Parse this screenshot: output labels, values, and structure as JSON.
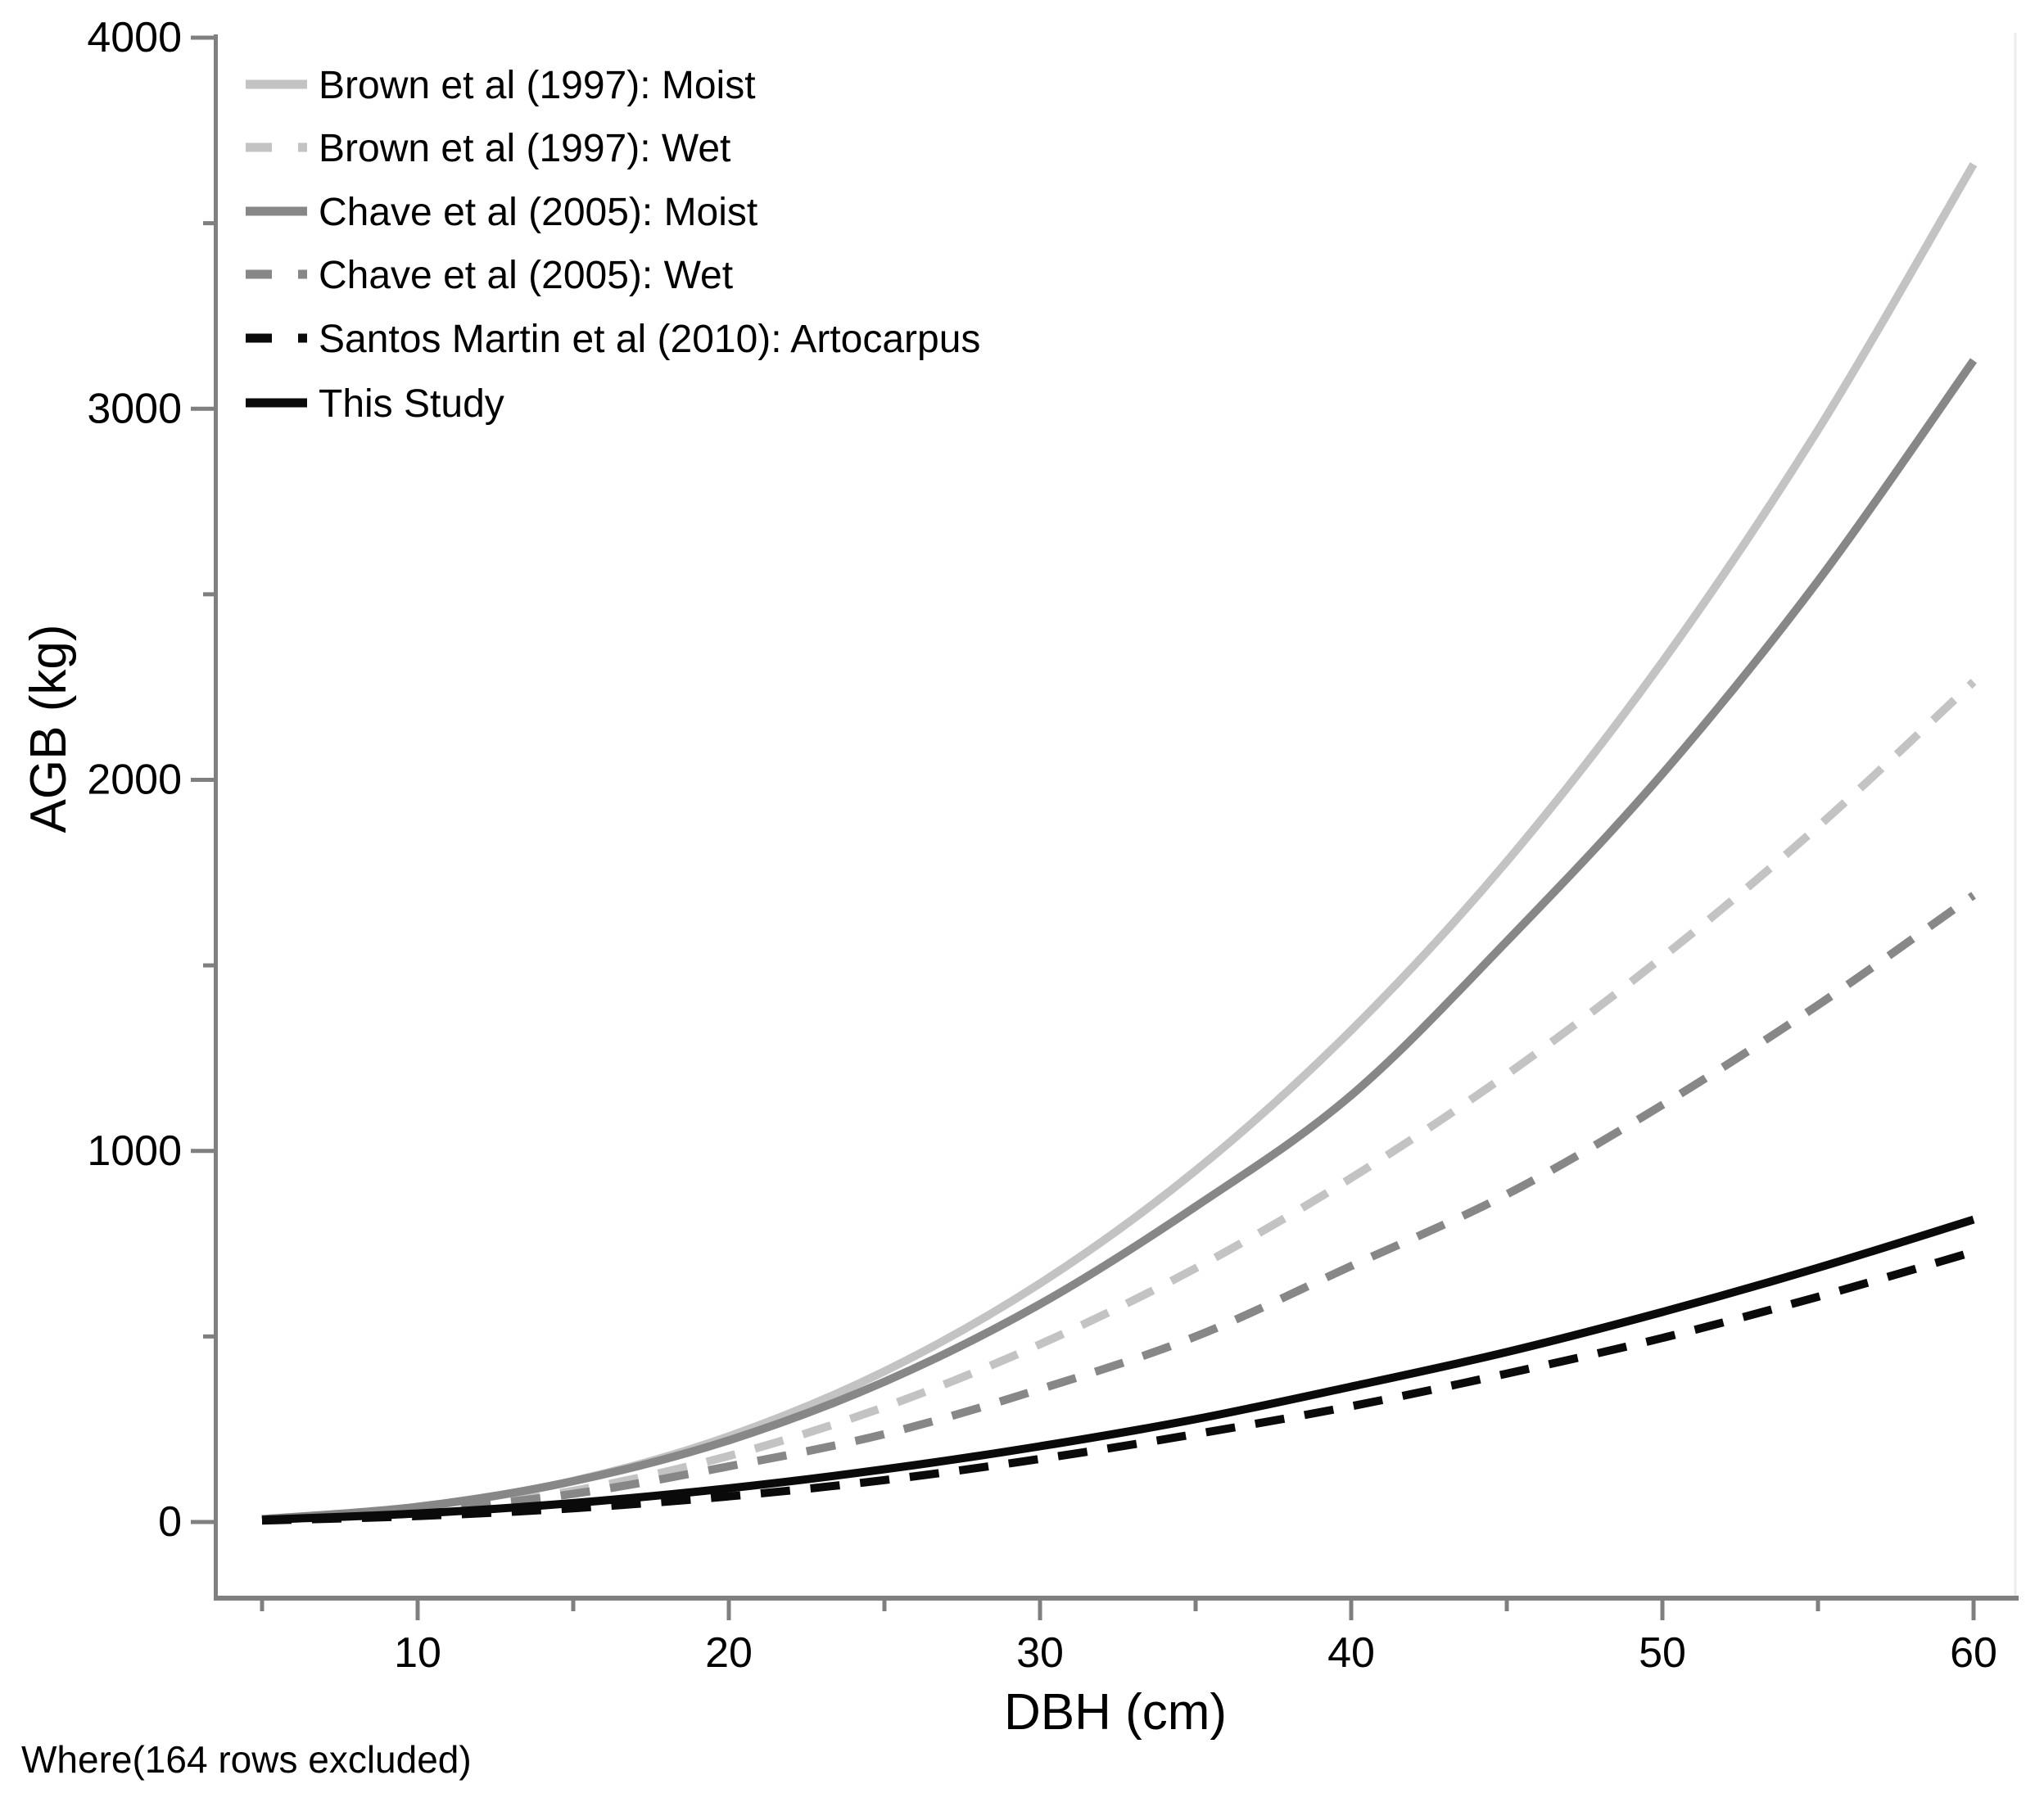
{
  "figure": {
    "where_note": "Where(164 rows excluded)"
  },
  "colors": {
    "light_gray": "#c3c3c3",
    "mid_gray": "#878787",
    "black": "#0a0a0a",
    "axis_gray": "#7f7f7f",
    "frame_border": "#ededed",
    "text": "#000000",
    "background": "#ffffff"
  },
  "chart_data": {
    "type": "line",
    "title": "",
    "xlabel": "DBH (cm)",
    "ylabel": "AGB (kg)",
    "xlim": [
      5,
      60
    ],
    "ylim": [
      0,
      4000
    ],
    "grid": false,
    "legend_position": "top-left",
    "x_ticks_major": [
      10,
      20,
      30,
      40,
      50,
      60
    ],
    "x_ticks_minor": [
      5,
      15,
      25,
      35,
      45,
      55
    ],
    "x_tick_labels": [
      "10",
      "20",
      "30",
      "40",
      "50",
      "60"
    ],
    "y_ticks_major": [
      0,
      1000,
      2000,
      3000,
      4000
    ],
    "y_ticks_minor": [
      500,
      1500,
      2500,
      3500
    ],
    "y_tick_labels": [
      "0",
      "1000",
      "2000",
      "3000",
      "4000"
    ],
    "x": [
      5,
      10,
      15,
      20,
      25,
      30,
      35,
      40,
      45,
      50,
      55,
      60
    ],
    "series": [
      {
        "name": "Brown et al (1997): Moist",
        "color": "#c3c3c3",
        "dash": "solid",
        "values": [
          7,
          40,
          111,
          231,
          406,
          643,
          947,
          1325,
          1780,
          2318,
          2943,
          3659
        ]
      },
      {
        "name": "Brown et al (1997): Wet",
        "color": "#c3c3c3",
        "dash": "dashed",
        "values": [
          5,
          26,
          84,
          178,
          310,
          479,
          684,
          927,
          1206,
          1522,
          1874,
          2264
        ]
      },
      {
        "name": "Chave et al (2005): Moist",
        "color": "#878787",
        "dash": "solid",
        "values": [
          8,
          41,
          110,
          220,
          378,
          587,
          850,
          1150,
          1565,
          2016,
          2536,
          3130
        ]
      },
      {
        "name": "Chave et al (2005): Wet",
        "color": "#878787",
        "dash": "dashed",
        "values": [
          7,
          31,
          76,
          150,
          237,
          358,
          500,
          690,
          883,
          1124,
          1393,
          1689
        ]
      },
      {
        "name": "Santos Martin et al (2010): Artocarpus",
        "color": "#0a0a0a",
        "dash": "dashed",
        "values": [
          4,
          16,
          37,
          69,
          113,
          170,
          237,
          312,
          400,
          496,
          607,
          728
        ]
      },
      {
        "name": "This Study",
        "color": "#0a0a0a",
        "dash": "solid",
        "values": [
          6,
          23,
          51,
          91,
          142,
          204,
          277,
          365,
          458,
          566,
          685,
          815
        ]
      }
    ]
  }
}
